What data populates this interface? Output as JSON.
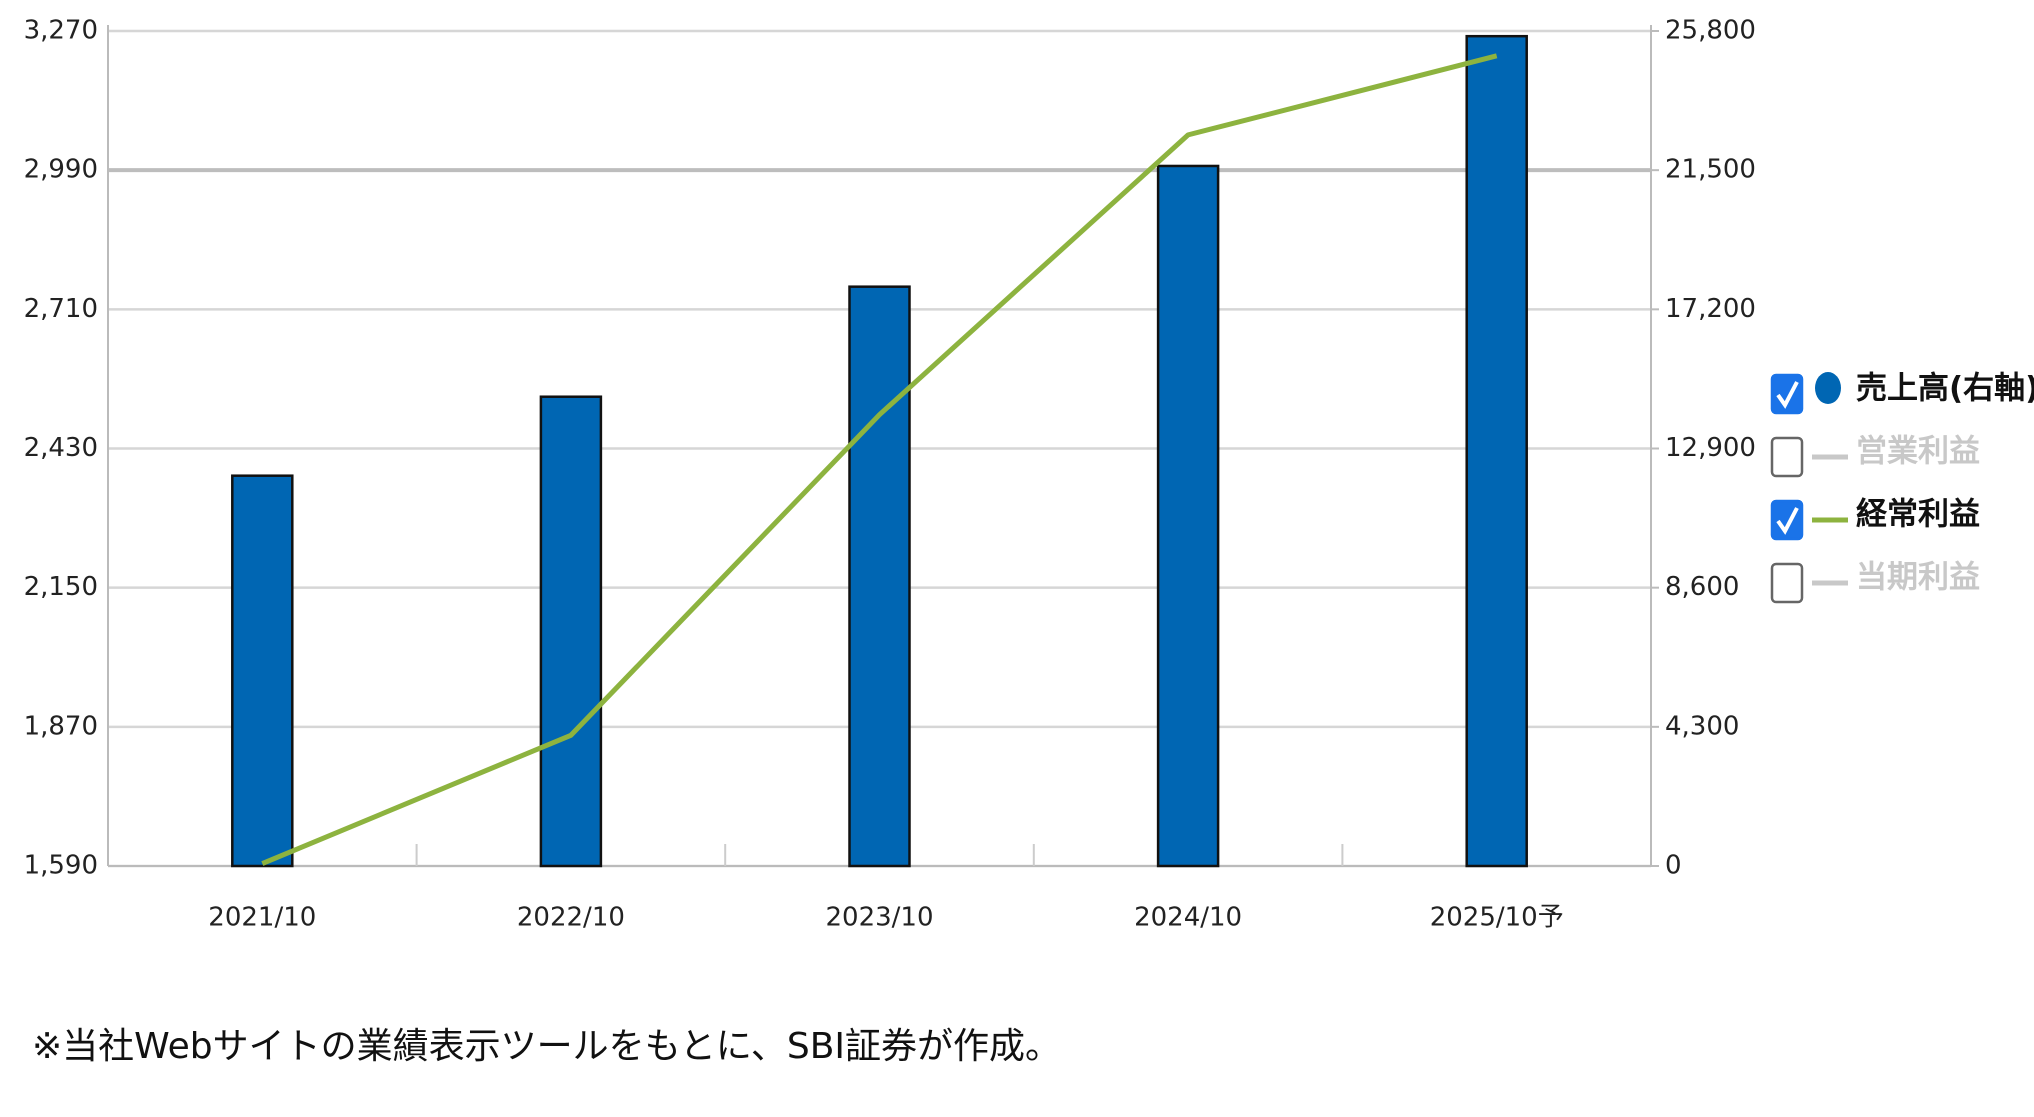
{
  "chart_data": {
    "type": "combo",
    "categories": [
      "2021/10",
      "2022/10",
      "2023/10",
      "2024/10",
      "2025/10予"
    ],
    "series": [
      {
        "name": "売上高(右軸)",
        "type": "bar",
        "axis": "y2",
        "color": "#0066b3",
        "checked": true,
        "values": [
          12060,
          14500,
          17900,
          21630,
          25640
        ]
      },
      {
        "name": "営業利益",
        "type": "line",
        "color": "#c8c8c8",
        "checked": false,
        "values": [
          null,
          null,
          null,
          null,
          null
        ]
      },
      {
        "name": "経常利益",
        "type": "line",
        "color": "#8db33f",
        "checked": true,
        "values": [
          1595,
          1853,
          2498,
          3061,
          3220
        ]
      },
      {
        "name": "当期利益",
        "type": "line",
        "color": "#c8c8c8",
        "checked": false,
        "values": [
          null,
          null,
          null,
          null,
          null
        ]
      }
    ],
    "ylim": [
      1590,
      3270
    ],
    "yticks": [
      {
        "value": 1590,
        "label": "1,590"
      },
      {
        "value": 1870,
        "label": "1,870"
      },
      {
        "value": 2150,
        "label": "2,150"
      },
      {
        "value": 2430,
        "label": "2,430"
      },
      {
        "value": 2710,
        "label": "2,710"
      },
      {
        "value": 2990,
        "label": "2,990"
      },
      {
        "value": 3270,
        "label": "3,270"
      }
    ],
    "y2lim": [
      0,
      25800
    ],
    "y2ticks": [
      0,
      {
        "value": 4300,
        "label": "4,300"
      },
      {
        "value": 8600,
        "label": "8,600"
      },
      {
        "value": 12900,
        "label": "12,900"
      },
      {
        "value": 17200,
        "label": "17,200"
      },
      {
        "value": 21500,
        "label": "21,500"
      },
      {
        "value": 25800,
        "label": "25,800"
      }
    ],
    "grid": true,
    "legend": "right",
    "note": "※当社Webサイトの業績表示ツールをもとに、SBI証券が作成。"
  }
}
